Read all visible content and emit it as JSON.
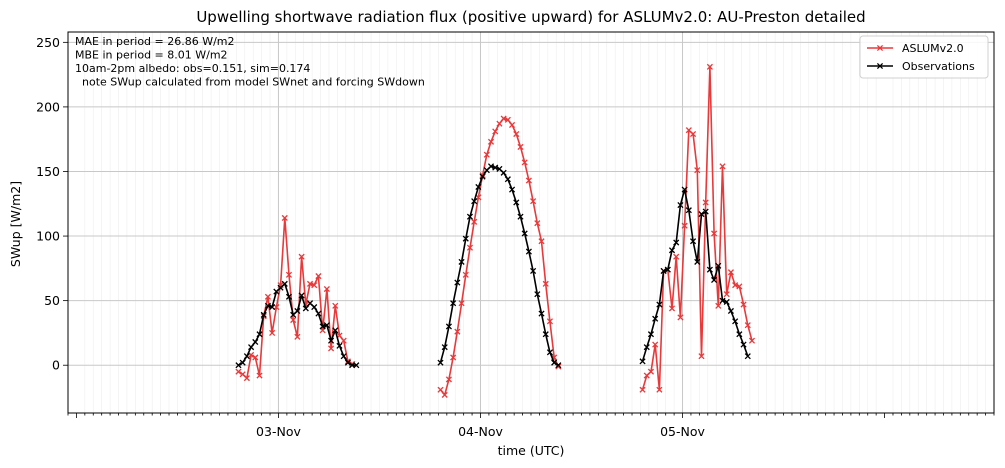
{
  "chart_data": {
    "type": "line",
    "title": "Upwelling shortwave radiation flux (positive upward) for ASLUMv2.0: AU-Preston detailed",
    "xlabel": "time (UTC)",
    "ylabel": "SWup [W/m2]",
    "x_range_hours": [
      -25.0,
      85.0
    ],
    "ylim": [
      -37,
      258
    ],
    "yticks": [
      0,
      50,
      100,
      150,
      200,
      250
    ],
    "xticks": [
      {
        "label": "03-Nov",
        "hour": 0
      },
      {
        "label": "04-Nov",
        "hour": 24
      },
      {
        "label": "05-Nov",
        "hour": 48
      }
    ],
    "grid": true,
    "legend_position": "upper right",
    "annotations": [
      "MAE in period = 26.86 W/m2",
      "MBE in period = 8.01 W/m2",
      "10am-2pm albedo: obs=0.151, sim=0.174",
      "  note SWup calculated from model SWnet and forcing SWdown"
    ],
    "series": [
      {
        "name": "ASLUMv2.0",
        "color": "#e8393b",
        "marker": "x",
        "segments": [
          [
            [
              -4.75,
              -5
            ],
            [
              -4.25,
              -7
            ],
            [
              -3.75,
              -10
            ],
            [
              -3.25,
              8
            ],
            [
              -2.75,
              6
            ],
            [
              -2.25,
              -8
            ],
            [
              -1.75,
              38
            ],
            [
              -1.25,
              53
            ],
            [
              -0.75,
              25
            ],
            [
              -0.25,
              45
            ],
            [
              0.25,
              62
            ],
            [
              0.75,
              114
            ],
            [
              1.25,
              70
            ],
            [
              1.75,
              35
            ],
            [
              2.25,
              22
            ],
            [
              2.75,
              84
            ],
            [
              3.25,
              47
            ],
            [
              3.75,
              63
            ],
            [
              4.25,
              62
            ],
            [
              4.75,
              69
            ],
            [
              5.25,
              27
            ],
            [
              5.75,
              59
            ],
            [
              6.25,
              13
            ],
            [
              6.75,
              46
            ],
            [
              7.25,
              23
            ],
            [
              7.75,
              19
            ],
            [
              8.25,
              3
            ],
            [
              8.75,
              1
            ]
          ],
          [
            [
              19.25,
              -19
            ],
            [
              19.75,
              -23
            ],
            [
              20.25,
              -11
            ],
            [
              20.75,
              6
            ],
            [
              21.25,
              26
            ],
            [
              21.75,
              48
            ],
            [
              22.25,
              70
            ],
            [
              22.75,
              91
            ],
            [
              23.25,
              111
            ],
            [
              23.75,
              130
            ],
            [
              24.25,
              147
            ],
            [
              24.75,
              163
            ],
            [
              25.25,
              173
            ],
            [
              25.75,
              181
            ],
            [
              26.25,
              187
            ],
            [
              26.75,
              191
            ],
            [
              27.25,
              190
            ],
            [
              27.75,
              186
            ],
            [
              28.25,
              179
            ],
            [
              28.75,
              169
            ],
            [
              29.25,
              157
            ],
            [
              29.75,
              143
            ],
            [
              30.25,
              127
            ],
            [
              30.75,
              110
            ],
            [
              31.25,
              96
            ],
            [
              31.75,
              63
            ],
            [
              32.25,
              34
            ],
            [
              32.75,
              6
            ],
            [
              33.25,
              -1
            ]
          ],
          [
            [
              43.25,
              -19
            ],
            [
              43.75,
              -8
            ],
            [
              44.25,
              -5
            ],
            [
              44.75,
              16
            ],
            [
              45.25,
              -19
            ],
            [
              45.75,
              73
            ],
            [
              46.25,
              74
            ],
            [
              46.75,
              44
            ],
            [
              47.25,
              84
            ],
            [
              47.75,
              37
            ],
            [
              48.25,
              108
            ],
            [
              48.75,
              182
            ],
            [
              49.25,
              179
            ],
            [
              49.75,
              151
            ],
            [
              50.25,
              7
            ],
            [
              50.75,
              126
            ],
            [
              51.25,
              231
            ],
            [
              51.75,
              102
            ],
            [
              52.25,
              46
            ],
            [
              52.75,
              154
            ],
            [
              53.25,
              55
            ],
            [
              53.75,
              72
            ],
            [
              54.25,
              62
            ],
            [
              54.75,
              61
            ],
            [
              55.25,
              47
            ],
            [
              55.75,
              31
            ],
            [
              56.25,
              19
            ]
          ]
        ]
      },
      {
        "name": "Observations",
        "color": "#000000",
        "marker": "x",
        "segments": [
          [
            [
              -4.75,
              0
            ],
            [
              -4.25,
              2
            ],
            [
              -3.75,
              7
            ],
            [
              -3.25,
              14
            ],
            [
              -2.75,
              18
            ],
            [
              -2.25,
              24
            ],
            [
              -1.75,
              39
            ],
            [
              -1.25,
              46
            ],
            [
              -0.75,
              45
            ],
            [
              -0.25,
              57
            ],
            [
              0.25,
              60
            ],
            [
              0.75,
              63
            ],
            [
              1.25,
              53
            ],
            [
              1.75,
              39
            ],
            [
              2.25,
              42
            ],
            [
              2.75,
              54
            ],
            [
              3.25,
              44
            ],
            [
              3.75,
              48
            ],
            [
              4.25,
              45
            ],
            [
              4.75,
              40
            ],
            [
              5.25,
              30
            ],
            [
              5.75,
              31
            ],
            [
              6.25,
              19
            ],
            [
              6.75,
              27
            ],
            [
              7.25,
              15
            ],
            [
              7.75,
              7
            ],
            [
              8.25,
              2
            ],
            [
              8.75,
              0
            ],
            [
              9.25,
              0
            ]
          ],
          [
            [
              19.25,
              2
            ],
            [
              19.75,
              14
            ],
            [
              20.25,
              30
            ],
            [
              20.75,
              48
            ],
            [
              21.25,
              64
            ],
            [
              21.75,
              80
            ],
            [
              22.25,
              98
            ],
            [
              22.75,
              115
            ],
            [
              23.25,
              127
            ],
            [
              23.75,
              138
            ],
            [
              24.25,
              146
            ],
            [
              24.75,
              151
            ],
            [
              25.25,
              154
            ],
            [
              25.75,
              153
            ],
            [
              26.25,
              152
            ],
            [
              26.75,
              149
            ],
            [
              27.25,
              144
            ],
            [
              27.75,
              136
            ],
            [
              28.25,
              126
            ],
            [
              28.75,
              115
            ],
            [
              29.25,
              102
            ],
            [
              29.75,
              88
            ],
            [
              30.25,
              73
            ],
            [
              30.75,
              55
            ],
            [
              31.25,
              40
            ],
            [
              31.75,
              24
            ],
            [
              32.25,
              10
            ],
            [
              32.75,
              2
            ],
            [
              33.25,
              0
            ]
          ],
          [
            [
              43.25,
              3
            ],
            [
              43.75,
              14
            ],
            [
              44.25,
              24
            ],
            [
              44.75,
              36
            ],
            [
              45.25,
              47
            ],
            [
              45.75,
              73
            ],
            [
              46.25,
              74
            ],
            [
              46.75,
              89
            ],
            [
              47.25,
              95
            ],
            [
              47.75,
              124
            ],
            [
              48.25,
              136
            ],
            [
              48.75,
              120
            ],
            [
              49.25,
              96
            ],
            [
              49.75,
              80
            ],
            [
              50.25,
              117
            ],
            [
              50.75,
              119
            ],
            [
              51.25,
              74
            ],
            [
              51.75,
              66
            ],
            [
              52.25,
              77
            ],
            [
              52.75,
              50
            ],
            [
              53.25,
              49
            ],
            [
              53.75,
              42
            ],
            [
              54.25,
              34
            ],
            [
              54.75,
              24
            ],
            [
              55.25,
              16
            ],
            [
              55.75,
              7
            ]
          ]
        ]
      }
    ]
  }
}
